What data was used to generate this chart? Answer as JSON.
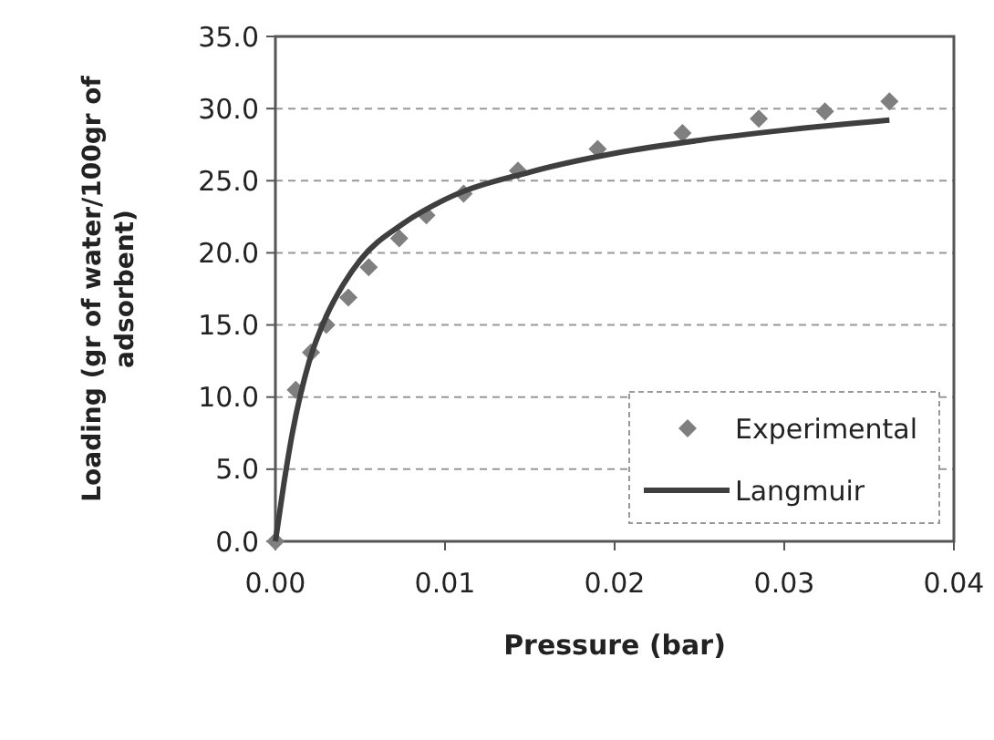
{
  "chart_data": {
    "type": "scatter",
    "xlabel": "Pressure (bar)",
    "ylabel": "Loading  (gr of water/100gr of adsorbent)",
    "xlim": [
      0,
      0.04
    ],
    "xticks": [
      {
        "value": 0,
        "label": "0.00"
      },
      {
        "value": 0.01,
        "label": "0.01"
      },
      {
        "value": 0.02,
        "label": "0.02"
      },
      {
        "value": 0.03,
        "label": "0.03"
      },
      {
        "value": 0.04,
        "label": "0.04"
      }
    ],
    "ylim": [
      0,
      35
    ],
    "yticks": [
      {
        "value": 0,
        "label": "0.0"
      },
      {
        "value": 5,
        "label": "5.0"
      },
      {
        "value": 10,
        "label": "10.0"
      },
      {
        "value": 15,
        "label": "15.0"
      },
      {
        "value": 20,
        "label": "20.0"
      },
      {
        "value": 25,
        "label": "25.0"
      },
      {
        "value": 30,
        "label": "30.0"
      },
      {
        "value": 35,
        "label": "35.0"
      }
    ],
    "grid": "y",
    "legend": "bottom right",
    "series": [
      {
        "name": "Experimental",
        "marker": "diamond",
        "color": "#7f7f7f",
        "x": [
          0,
          0.0012,
          0.0021,
          0.003,
          0.0043,
          0.0055,
          0.0073,
          0.0089,
          0.0111,
          0.0143,
          0.019,
          0.024,
          0.0285,
          0.0324,
          0.0362
        ],
        "values": [
          0,
          10.5,
          13.1,
          15.0,
          16.9,
          19.0,
          21.0,
          22.6,
          24.1,
          25.7,
          27.2,
          28.3,
          29.3,
          29.8,
          30.5
        ]
      },
      {
        "name": "Langmuir",
        "type": "line",
        "line_style": "solid",
        "color": "#3f3f3f",
        "x": [
          0,
          0.0005,
          0.001,
          0.002,
          0.003,
          0.004,
          0.005,
          0.0075,
          0.01,
          0.015,
          0.02,
          0.025,
          0.03,
          0.0362
        ],
        "values": [
          0,
          4.0,
          7.5,
          12.5,
          15.6,
          17.8,
          19.5,
          22.0,
          23.7,
          25.6,
          26.9,
          27.8,
          28.5,
          29.2
        ]
      }
    ]
  }
}
